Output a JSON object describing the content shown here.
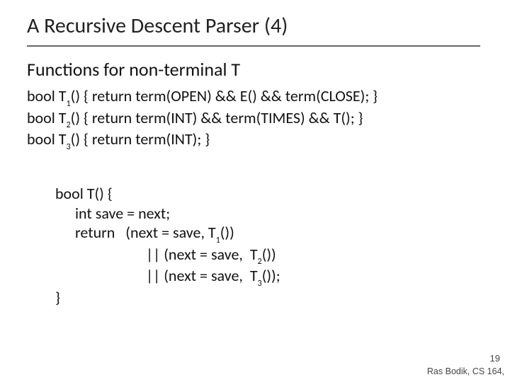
{
  "title": "A Recursive Descent Parser (4)",
  "subtitle": "Functions for non-terminal T",
  "b1": {
    "l1a": "bool T",
    "l1s": "1",
    "l1b": "() { return term(OPEN) && E() && term(CLOSE); }",
    "l2a": "bool T",
    "l2s": "2",
    "l2b": "() { return term(INT) && term(TIMES) && T(); }",
    "l3a": "bool T",
    "l3s": "3",
    "l3b": "() { return term(INT); }"
  },
  "b2": {
    "l1": "bool T() {",
    "l2": "int save = next;",
    "l3a": "return   (next = save, T",
    "l3s": "1",
    "l3b": "())",
    "l4a": "|| (next = save,  T",
    "l4s": "2",
    "l4b": "())",
    "l5a": "|| (next = save,  T",
    "l5s": "3",
    "l5b": "());",
    "l6": "}"
  },
  "pagenum": "19",
  "credit": "Ras Bodik, CS 164,",
  "colors": {
    "background": "#ffffff",
    "text": "#111111",
    "title": "#222222",
    "rule": "#666666",
    "footer": "#444444"
  },
  "fontsizes": {
    "title_pt": 30,
    "subtitle_pt": 26,
    "body_pt": 22,
    "footer_pt": 13
  }
}
